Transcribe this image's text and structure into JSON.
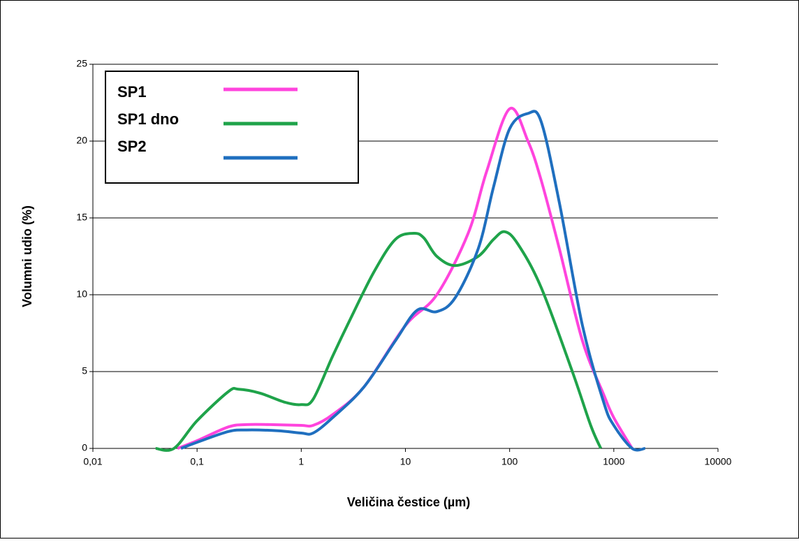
{
  "chart_data": {
    "type": "line",
    "x_label": "Veličina čestice (µm)",
    "y_label": "Volumni udio (%)",
    "xscale": "log",
    "xlim": [
      0.01,
      10000
    ],
    "xticks": [
      {
        "value": 0.01,
        "label": "0,01"
      },
      {
        "value": 0.1,
        "label": "0,1"
      },
      1,
      10,
      100,
      1000,
      10000
    ],
    "ylim": [
      0,
      25
    ],
    "yticks": [
      0,
      5,
      10,
      15,
      20,
      25
    ],
    "grid": true,
    "legend": "upper left",
    "series": [
      {
        "name": "SP1",
        "color": "#ff44dd",
        "x": [
          0.065,
          0.1,
          0.2,
          0.3,
          0.5,
          1,
          1.3,
          2,
          4,
          10,
          20,
          40,
          60,
          100,
          150,
          200,
          300,
          500,
          800,
          1000,
          1500
        ],
        "values": [
          0,
          0.5,
          1.4,
          1.55,
          1.55,
          1.5,
          1.5,
          2.2,
          4,
          8,
          10,
          14,
          18,
          22.1,
          20,
          17.5,
          13,
          7,
          3.5,
          2,
          0
        ]
      },
      {
        "name": "SP1 dno",
        "color": "#1fa34a",
        "x": [
          0.04,
          0.06,
          0.1,
          0.2,
          0.25,
          0.4,
          0.7,
          1,
          1.3,
          2,
          3,
          5,
          8,
          12,
          15,
          20,
          30,
          50,
          70,
          90,
          120,
          200,
          400,
          600,
          750
        ],
        "values": [
          0,
          0,
          1.8,
          3.7,
          3.85,
          3.6,
          3,
          2.85,
          3.2,
          6,
          8.5,
          11.5,
          13.6,
          14,
          13.7,
          12.5,
          11.9,
          12.5,
          13.6,
          14.1,
          13.3,
          10.5,
          5,
          1.5,
          0
        ]
      },
      {
        "name": "SP2",
        "color": "#1f6fbf",
        "x": [
          0.07,
          0.1,
          0.2,
          0.3,
          0.6,
          1,
          1.3,
          2,
          4,
          8,
          13,
          20,
          30,
          50,
          70,
          100,
          150,
          200,
          300,
          500,
          800,
          1000,
          1500,
          2000
        ],
        "values": [
          0,
          0.4,
          1.1,
          1.2,
          1.15,
          1,
          1,
          2,
          4,
          7,
          9,
          8.9,
          9.8,
          13,
          17,
          20.8,
          21.8,
          21.3,
          16,
          8,
          3,
          1.5,
          0,
          0
        ]
      }
    ]
  }
}
